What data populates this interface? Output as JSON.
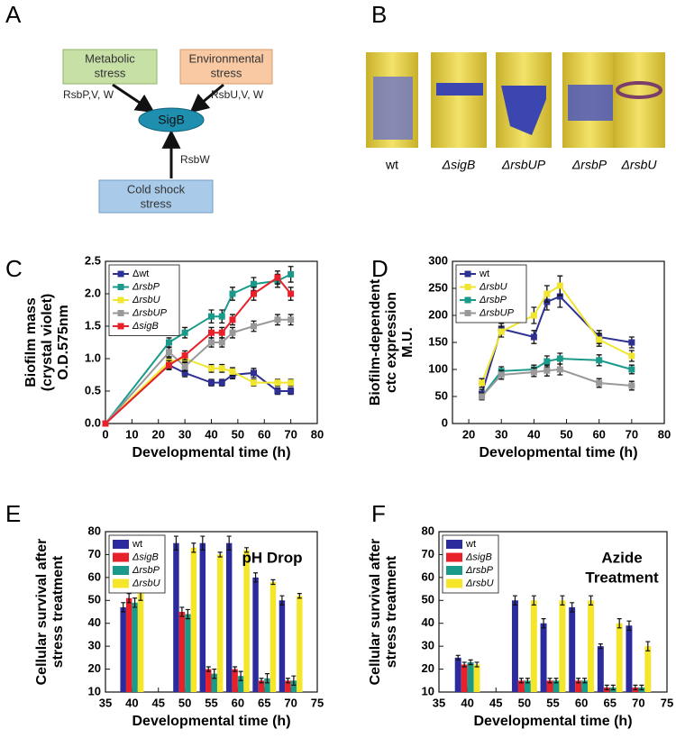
{
  "panel_labels": [
    "A",
    "B",
    "C",
    "D",
    "E",
    "F"
  ],
  "diagram": {
    "nodes": [
      [
        "Metabolic",
        "stress"
      ],
      [
        "Environmental",
        "stress"
      ],
      [
        "SigB"
      ],
      [
        "Cold shock",
        "stress"
      ]
    ],
    "edge_labels": [
      "RsbP,V, W",
      "RsbU,V, W",
      "RsbW"
    ]
  },
  "photo_labels": [
    "wt",
    "ΔsigB",
    "ΔrsbUP",
    "ΔrsbP",
    "ΔrsbU"
  ],
  "chart_data": [
    {
      "type": "line",
      "xlabel": "Developmental time (h)",
      "ylabel": [
        "Biofilm mass",
        "(crystal violet)",
        "O.D.575nm"
      ],
      "x": [
        0,
        24,
        30,
        40,
        44,
        48,
        56,
        65,
        70
      ],
      "xlim": [
        0,
        80
      ],
      "xticks": [
        0,
        10,
        20,
        30,
        40,
        50,
        60,
        70,
        80
      ],
      "ylim": [
        0,
        2.5
      ],
      "yticks": [
        {
          "value": 0,
          "label": "0.0"
        },
        0.5,
        {
          "value": 1,
          "label": "1.0"
        },
        1.5,
        {
          "value": 2,
          "label": "2.0"
        },
        2.5
      ],
      "legend": "upper left",
      "series": [
        {
          "name": "Δwt",
          "color": "#2e3192",
          "values": [
            0,
            0.9,
            0.78,
            0.63,
            0.63,
            0.75,
            0.78,
            0.5,
            0.5
          ],
          "errors": [
            0,
            0.06,
            0.06,
            0.05,
            0.05,
            0.06,
            0.07,
            0.05,
            0.05
          ]
        },
        {
          "name": "ΔrsbP",
          "color": "#1a9a8a",
          "values": [
            0,
            1.25,
            1.4,
            1.65,
            1.65,
            2.0,
            2.15,
            2.2,
            2.3
          ],
          "errors": [
            0,
            0.07,
            0.08,
            0.1,
            0.1,
            0.1,
            0.1,
            0.1,
            0.12
          ]
        },
        {
          "name": "ΔrsbU",
          "color": "#f0e630",
          "values": [
            0,
            0.95,
            1.0,
            0.85,
            0.85,
            0.8,
            0.63,
            0.63,
            0.63
          ],
          "errors": [
            0,
            0.06,
            0.06,
            0.06,
            0.06,
            0.06,
            0.05,
            0.05,
            0.05
          ]
        },
        {
          "name": "ΔrsbUP",
          "color": "#999999",
          "values": [
            0,
            1.1,
            0.88,
            1.25,
            1.25,
            1.4,
            1.5,
            1.6,
            1.6
          ],
          "errors": [
            0,
            0.07,
            0.07,
            0.07,
            0.07,
            0.08,
            0.08,
            0.08,
            0.08
          ]
        },
        {
          "name": "ΔsigB",
          "color": "#e8202a",
          "values": [
            0,
            0.9,
            1.05,
            1.4,
            1.4,
            1.6,
            2.0,
            2.25,
            2.0
          ],
          "errors": [
            0,
            0.07,
            0.07,
            0.08,
            0.08,
            0.08,
            0.1,
            0.1,
            0.1
          ]
        }
      ]
    },
    {
      "type": "line",
      "xlabel": "Developmental time (h)",
      "ylabel": [
        "Biofilm-dependent",
        "ctc expression",
        "M.U."
      ],
      "x": [
        24,
        30,
        40,
        44,
        48,
        60,
        70
      ],
      "xlim": [
        15,
        80
      ],
      "xticks": [
        20,
        30,
        40,
        50,
        60,
        70,
        80
      ],
      "ylim": [
        0,
        300
      ],
      "yticks": [
        0,
        50,
        100,
        150,
        200,
        250,
        300
      ],
      "legend": "upper left",
      "series": [
        {
          "name": "wt",
          "color": "#2e3192",
          "values": [
            55,
            175,
            160,
            225,
            235,
            160,
            150
          ],
          "errors": [
            8,
            10,
            12,
            15,
            20,
            12,
            10
          ]
        },
        {
          "name": "ΔrsbU",
          "color": "#f0e630",
          "values": [
            75,
            170,
            200,
            240,
            255,
            155,
            125
          ],
          "errors": [
            8,
            10,
            15,
            15,
            18,
            12,
            10
          ]
        },
        {
          "name": "ΔrsbP",
          "color": "#1a9a8a",
          "values": [
            50,
            97,
            100,
            115,
            120,
            117,
            100
          ],
          "errors": [
            6,
            8,
            8,
            10,
            10,
            10,
            8
          ]
        },
        {
          "name": "ΔrsbUP",
          "color": "#999999",
          "values": [
            50,
            90,
            95,
            98,
            100,
            75,
            70
          ],
          "errors": [
            6,
            8,
            8,
            10,
            10,
            8,
            8
          ]
        }
      ]
    },
    {
      "type": "bar",
      "xlabel": "Developmental time (h)",
      "ylabel": [
        "Cellular survival after",
        "stress treatment"
      ],
      "annotation": [
        "pH Drop"
      ],
      "x": [
        40,
        50,
        55,
        60,
        65,
        70
      ],
      "xlim": [
        35,
        75
      ],
      "xticks": [
        35,
        40,
        45,
        50,
        55,
        60,
        65,
        70,
        75
      ],
      "ylim": [
        10,
        80
      ],
      "yticks": [
        10,
        20,
        30,
        40,
        50,
        60,
        70,
        80
      ],
      "legend": "upper left",
      "series": [
        {
          "name": "wt",
          "color": "#2b2b9e",
          "values": [
            47,
            75,
            75,
            75,
            60,
            50
          ],
          "errors": [
            2,
            3,
            3,
            3,
            2,
            2
          ]
        },
        {
          "name": "ΔsigB",
          "color": "#e8202a",
          "values": [
            51,
            45,
            20,
            20,
            15,
            15
          ],
          "errors": [
            2,
            2,
            1,
            1,
            1,
            1
          ]
        },
        {
          "name": "ΔrsbP",
          "color": "#1a9a8a",
          "values": [
            49,
            44,
            18,
            17,
            16,
            15
          ],
          "errors": [
            2,
            2,
            2,
            2,
            2,
            2
          ]
        },
        {
          "name": "ΔrsbU",
          "color": "#f5e62a",
          "values": [
            53,
            73,
            70,
            72,
            58,
            52
          ],
          "errors": [
            3,
            2,
            1,
            1,
            1,
            1
          ]
        }
      ]
    },
    {
      "type": "bar",
      "xlabel": "Developmental time (h)",
      "ylabel": [
        "Cellular survival after",
        "stress treatment"
      ],
      "annotation": [
        "Azide",
        "Treatment"
      ],
      "x": [
        40,
        50,
        55,
        60,
        65,
        70
      ],
      "xlim": [
        35,
        75
      ],
      "xticks": [
        35,
        40,
        45,
        50,
        55,
        60,
        65,
        70,
        75
      ],
      "ylim": [
        10,
        80
      ],
      "yticks": [
        10,
        20,
        30,
        40,
        50,
        60,
        70,
        80
      ],
      "legend": "upper left",
      "series": [
        {
          "name": "wt",
          "color": "#2b2b9e",
          "values": [
            25,
            50,
            40,
            47,
            30,
            39
          ],
          "errors": [
            1,
            2,
            2,
            2,
            1,
            2
          ]
        },
        {
          "name": "ΔsigB",
          "color": "#e8202a",
          "values": [
            22,
            15,
            15,
            15,
            12,
            12
          ],
          "errors": [
            1,
            1,
            1,
            1,
            1,
            1
          ]
        },
        {
          "name": "ΔrsbP",
          "color": "#1a9a8a",
          "values": [
            23,
            15,
            15,
            15,
            12,
            12
          ],
          "errors": [
            1,
            1,
            1,
            1,
            1,
            1
          ]
        },
        {
          "name": "ΔrsbU",
          "color": "#f5e62a",
          "values": [
            22,
            50,
            50,
            50,
            40,
            30
          ],
          "errors": [
            1,
            2,
            2,
            2,
            2,
            2
          ]
        }
      ]
    }
  ]
}
